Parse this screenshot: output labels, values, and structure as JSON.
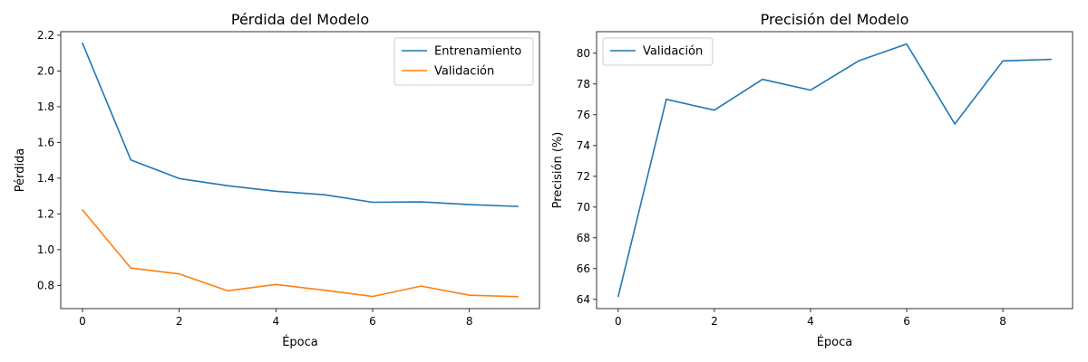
{
  "chart_data": [
    {
      "type": "line",
      "title": "Pérdida del Modelo",
      "xlabel": "Época",
      "ylabel": "Pérdida",
      "xlim": [
        -0.45,
        9.45
      ],
      "ylim": [
        0.67,
        2.22
      ],
      "xticks": [
        0,
        2,
        4,
        6,
        8
      ],
      "yticks": [
        0.8,
        1.0,
        1.2,
        1.4,
        1.6,
        1.8,
        2.0,
        2.2
      ],
      "ytick_labels": [
        "0.8",
        "1.0",
        "1.2",
        "1.4",
        "1.6",
        "1.8",
        "2.0",
        "2.2"
      ],
      "grid": false,
      "legend_position": "top-right",
      "x": [
        0,
        1,
        2,
        3,
        4,
        5,
        6,
        7,
        8,
        9
      ],
      "series": [
        {
          "name": "Entrenamiento",
          "color": "#1f77b4",
          "values": [
            2.155,
            1.502,
            1.398,
            1.358,
            1.327,
            1.307,
            1.265,
            1.267,
            1.252,
            1.242
          ]
        },
        {
          "name": "Validación",
          "color": "#ff7f0e",
          "values": [
            1.222,
            0.897,
            0.864,
            0.77,
            0.805,
            0.773,
            0.738,
            0.796,
            0.745,
            0.737
          ]
        }
      ]
    },
    {
      "type": "line",
      "title": "Precisión del Modelo",
      "xlabel": "Época",
      "ylabel": "Precisión (%)",
      "xlim": [
        -0.45,
        9.45
      ],
      "ylim": [
        63.4,
        81.4
      ],
      "xticks": [
        0,
        2,
        4,
        6,
        8
      ],
      "yticks": [
        64,
        66,
        68,
        70,
        72,
        74,
        76,
        78,
        80
      ],
      "ytick_labels": [
        "64",
        "66",
        "68",
        "70",
        "72",
        "74",
        "76",
        "78",
        "80"
      ],
      "grid": false,
      "legend_position": "top-left",
      "x": [
        0,
        1,
        2,
        3,
        4,
        5,
        6,
        7,
        8,
        9
      ],
      "series": [
        {
          "name": "Validación",
          "color": "#1f77b4",
          "values": [
            64.2,
            77.0,
            76.3,
            78.3,
            77.6,
            79.5,
            80.6,
            75.4,
            79.5,
            79.6
          ]
        }
      ]
    }
  ]
}
